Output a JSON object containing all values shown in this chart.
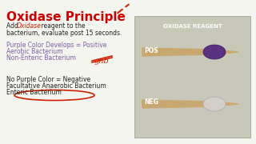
{
  "title": "Oxidase Principle",
  "title_color": "#cc0000",
  "bg_color": "#f5f5f0",
  "panel_bg": "#c8c8b8",
  "line1": "Add ",
  "line1_oxidase": "Oxidase",
  "line1_rest": " reagent to the",
  "line2": "bacterium, evaluate post 15 seconds.",
  "purple_lines": [
    "Purple Color Develops = Positive",
    "Aerobic Bacterium",
    "Non-Enteric Bacterium"
  ],
  "black_lines": [
    "No Purple Color = Negative",
    "Facultative Anaerobic Bacterium",
    "Enteric Bacterium"
  ],
  "reagent_label": "OXIDASE REAGENT",
  "pos_label": "POS",
  "neg_label": "NEG",
  "purple_color": "#7b5ea7",
  "red_color": "#cc2200",
  "text_color": "#222222",
  "check_color": "#cc2200",
  "swab_wood_color": "#c8a870",
  "swab_tip_pos_color": "#5a3080",
  "swab_tip_neg_color": "#d4cfc8"
}
